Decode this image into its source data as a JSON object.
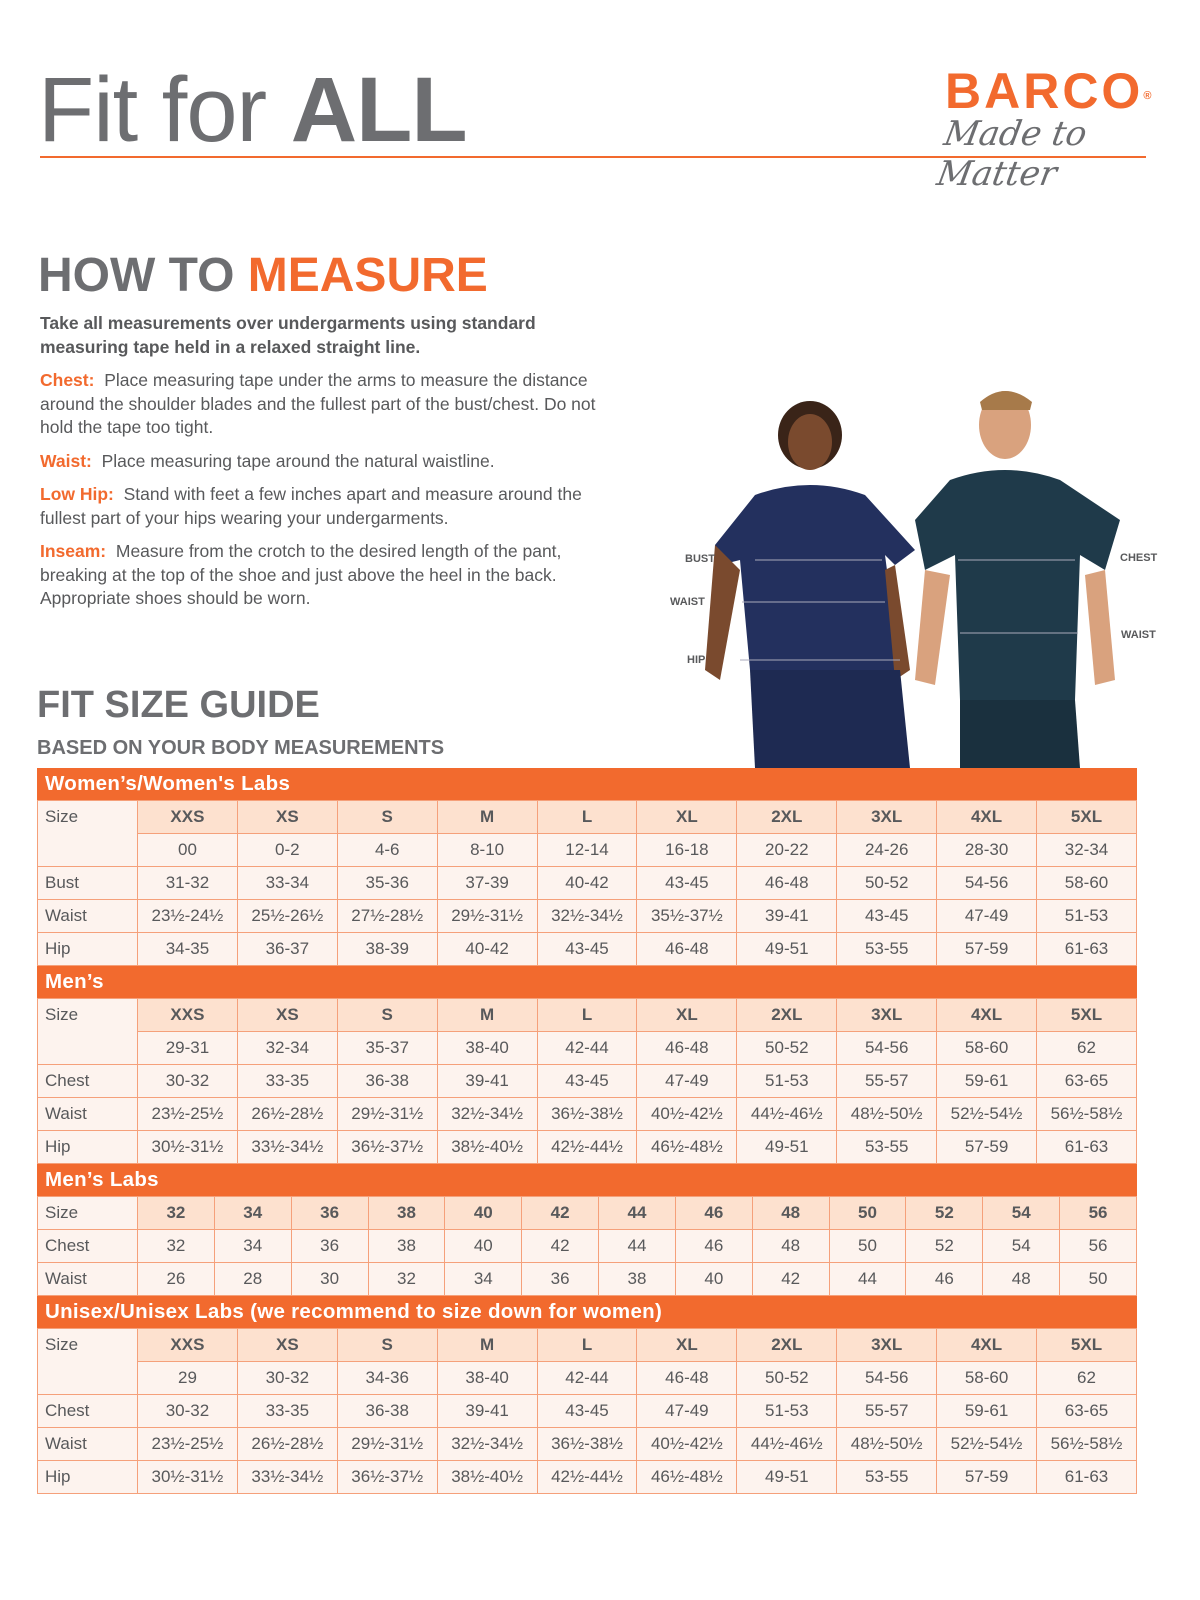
{
  "header": {
    "title_light": "Fit for ",
    "title_bold": "ALL"
  },
  "logo": {
    "brand": "BARCO",
    "registered": "®",
    "tagline": "Made to Matter"
  },
  "colors": {
    "accent": "#f26a2e",
    "gray": "#6d6e71",
    "size_row": "#fde1cf",
    "cell": "#fdf3ee"
  },
  "how_to": {
    "title_gray": "HOW TO ",
    "title_orange": "MEASURE",
    "lead": "Take all measurements over undergarments using standard measuring tape held in a relaxed straight line.",
    "items": [
      {
        "key": "Chest:",
        "text": "Place measuring tape under the arms to measure the distance around the shoulder blades and the fullest part of the bust/chest. Do not hold the tape too tight."
      },
      {
        "key": "Waist:",
        "text": "Place measuring tape around the natural waistline."
      },
      {
        "key": "Low Hip:",
        "text": "Stand with feet a few inches apart and measure around the fullest part of your hips wearing your undergarments."
      },
      {
        "key": "Inseam:",
        "text": "Measure from the crotch to the desired length of the pant, breaking at the top of the shoe and just above the heel in the back. Appropriate shoes should be worn."
      }
    ]
  },
  "photo_labels": {
    "bust": "BUST",
    "waist_w": "WAIST",
    "hip": "HIP",
    "chest": "CHEST",
    "waist_m": "WAIST"
  },
  "guide": {
    "title": "FIT SIZE GUIDE",
    "subtitle": "BASED ON YOUR BODY MEASUREMENTS"
  },
  "tables": [
    {
      "title": "Women’s/Women's Labs",
      "size_label": "Size",
      "sizes": [
        "XXS",
        "XS",
        "S",
        "M",
        "L",
        "XL",
        "2XL",
        "3XL",
        "4XL",
        "5XL"
      ],
      "size_sub": [
        "00",
        "0-2",
        "4-6",
        "8-10",
        "12-14",
        "16-18",
        "20-22",
        "24-26",
        "28-30",
        "32-34"
      ],
      "rows": [
        {
          "label": "Bust",
          "values": [
            "31-32",
            "33-34",
            "35-36",
            "37-39",
            "40-42",
            "43-45",
            "46-48",
            "50-52",
            "54-56",
            "58-60"
          ]
        },
        {
          "label": "Waist",
          "values": [
            "23½-24½",
            "25½-26½",
            "27½-28½",
            "29½-31½",
            "32½-34½",
            "35½-37½",
            "39-41",
            "43-45",
            "47-49",
            "51-53"
          ]
        },
        {
          "label": "Hip",
          "values": [
            "34-35",
            "36-37",
            "38-39",
            "40-42",
            "43-45",
            "46-48",
            "49-51",
            "53-55",
            "57-59",
            "61-63"
          ]
        }
      ]
    },
    {
      "title": "Men’s",
      "size_label": "Size",
      "sizes": [
        "XXS",
        "XS",
        "S",
        "M",
        "L",
        "XL",
        "2XL",
        "3XL",
        "4XL",
        "5XL"
      ],
      "size_sub": [
        "29-31",
        "32-34",
        "35-37",
        "38-40",
        "42-44",
        "46-48",
        "50-52",
        "54-56",
        "58-60",
        "62"
      ],
      "rows": [
        {
          "label": "Chest",
          "values": [
            "30-32",
            "33-35",
            "36-38",
            "39-41",
            "43-45",
            "47-49",
            "51-53",
            "55-57",
            "59-61",
            "63-65"
          ]
        },
        {
          "label": "Waist",
          "values": [
            "23½-25½",
            "26½-28½",
            "29½-31½",
            "32½-34½",
            "36½-38½",
            "40½-42½",
            "44½-46½",
            "48½-50½",
            "52½-54½",
            "56½-58½"
          ]
        },
        {
          "label": "Hip",
          "values": [
            "30½-31½",
            "33½-34½",
            "36½-37½",
            "38½-40½",
            "42½-44½",
            "46½-48½",
            "49-51",
            "53-55",
            "57-59",
            "61-63"
          ]
        }
      ]
    },
    {
      "title": "Men’s Labs",
      "size_label": "Size",
      "sizes": [
        "32",
        "34",
        "36",
        "38",
        "40",
        "42",
        "44",
        "46",
        "48",
        "50",
        "52",
        "54",
        "56"
      ],
      "rows": [
        {
          "label": "Chest",
          "values": [
            "32",
            "34",
            "36",
            "38",
            "40",
            "42",
            "44",
            "46",
            "48",
            "50",
            "52",
            "54",
            "56"
          ]
        },
        {
          "label": "Waist",
          "values": [
            "26",
            "28",
            "30",
            "32",
            "34",
            "36",
            "38",
            "40",
            "42",
            "44",
            "46",
            "48",
            "50"
          ]
        }
      ]
    },
    {
      "title": "Unisex/Unisex Labs (we recommend to size down for women)",
      "size_label": "Size",
      "sizes": [
        "XXS",
        "XS",
        "S",
        "M",
        "L",
        "XL",
        "2XL",
        "3XL",
        "4XL",
        "5XL"
      ],
      "size_sub": [
        "29",
        "30-32",
        "34-36",
        "38-40",
        "42-44",
        "46-48",
        "50-52",
        "54-56",
        "58-60",
        "62"
      ],
      "rows": [
        {
          "label": "Chest",
          "values": [
            "30-32",
            "33-35",
            "36-38",
            "39-41",
            "43-45",
            "47-49",
            "51-53",
            "55-57",
            "59-61",
            "63-65"
          ]
        },
        {
          "label": "Waist",
          "values": [
            "23½-25½",
            "26½-28½",
            "29½-31½",
            "32½-34½",
            "36½-38½",
            "40½-42½",
            "44½-46½",
            "48½-50½",
            "52½-54½",
            "56½-58½"
          ]
        },
        {
          "label": "Hip",
          "values": [
            "30½-31½",
            "33½-34½",
            "36½-37½",
            "38½-40½",
            "42½-44½",
            "46½-48½",
            "49-51",
            "53-55",
            "57-59",
            "61-63"
          ]
        }
      ]
    }
  ]
}
